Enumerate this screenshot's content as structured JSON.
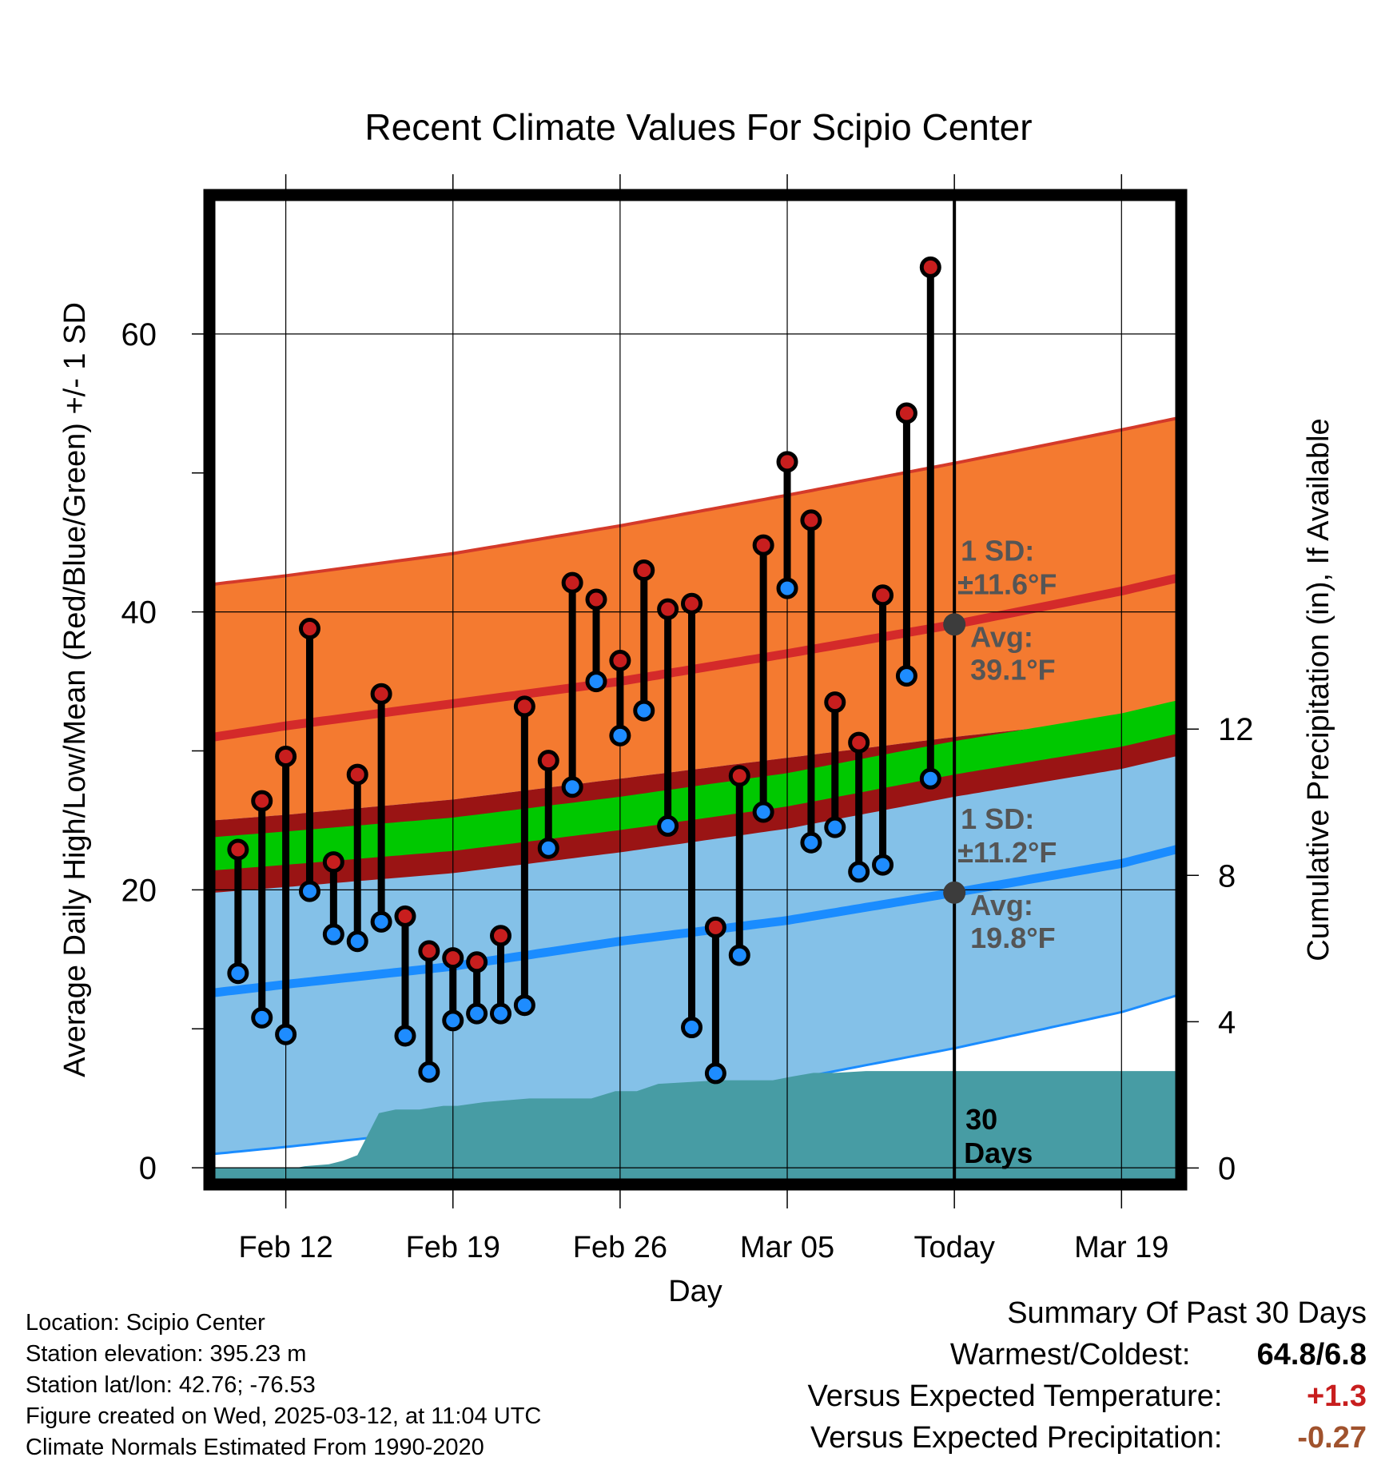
{
  "chart_data": {
    "type": "climate",
    "title": "Recent Climate Values For Scipio Center",
    "xlabel": "Day",
    "ylabel_left": "Average Daily High/Low/Mean (Red/Blue/Green) +/- 1 SD",
    "ylabel_right": "Cumulative Precipitation (in), If Available",
    "x_tick_labels": [
      "Feb 12",
      "Feb 19",
      "Feb 26",
      "Mar 05",
      "Today",
      "Mar 19"
    ],
    "x_tick_days": [
      0,
      7,
      14,
      21,
      28,
      35
    ],
    "x_range_days": [
      -3.2,
      37.5
    ],
    "today_day": 28,
    "ylim_left": [
      -1.2,
      70
    ],
    "yticks_left": [
      0,
      20,
      40,
      60
    ],
    "ylim_right": [
      -0.45,
      26.6
    ],
    "yticks_right": [
      0,
      4,
      8,
      12
    ],
    "normals": {
      "days": [
        -3,
        0,
        7,
        14,
        21,
        28,
        35,
        37.5
      ],
      "high_mean": [
        31.0,
        31.8,
        33.4,
        35.0,
        37.0,
        39.1,
        41.5,
        42.5
      ],
      "high_plus_sd": [
        42.0,
        42.6,
        44.2,
        46.2,
        48.4,
        50.7,
        53.1,
        54.0
      ],
      "high_minus_sd": [
        25.0,
        25.4,
        26.5,
        28.0,
        29.5,
        31.0,
        32.3,
        32.8
      ],
      "low_mean": [
        12.6,
        13.2,
        14.5,
        16.3,
        17.8,
        19.8,
        21.9,
        23.0
      ],
      "low_plus_sd": [
        25.0,
        25.4,
        26.5,
        28.0,
        29.5,
        31.0,
        32.3,
        32.8
      ],
      "low_minus_sd": [
        1.0,
        1.5,
        2.8,
        4.5,
        6.3,
        8.6,
        11.2,
        12.5
      ],
      "avg_mean": [
        22.6,
        23.0,
        24.0,
        25.5,
        27.2,
        29.5,
        31.5,
        32.5
      ],
      "avg_band_half_width": 1.2
    },
    "observed": {
      "days": [
        -2,
        -1,
        0,
        1,
        2,
        3,
        4,
        5,
        6,
        7,
        8,
        9,
        10,
        11,
        12,
        13,
        14,
        15,
        16,
        17,
        18,
        19,
        20,
        21,
        22,
        23,
        24,
        25,
        26,
        27
      ],
      "high": [
        22.9,
        26.4,
        29.6,
        38.8,
        22.0,
        28.3,
        34.1,
        18.1,
        15.6,
        15.1,
        14.8,
        16.7,
        33.2,
        29.3,
        42.1,
        40.9,
        36.5,
        43.0,
        40.2,
        40.6,
        17.3,
        28.2,
        44.8,
        50.8,
        46.6,
        33.5,
        30.6,
        41.2,
        54.3,
        64.8
      ],
      "low": [
        14.0,
        10.8,
        9.6,
        19.9,
        16.8,
        16.3,
        17.7,
        9.5,
        6.9,
        10.6,
        11.1,
        11.1,
        11.7,
        23.0,
        27.4,
        35.0,
        31.1,
        32.9,
        24.6,
        10.1,
        6.8,
        15.3,
        25.6,
        41.7,
        23.4,
        24.5,
        21.3,
        21.8,
        35.4,
        28.0
      ]
    },
    "precip_cumulative": {
      "days": [
        -3.2,
        0.4,
        0.8,
        1.8,
        2.4,
        3.0,
        3.9,
        4.6,
        5.6,
        6.6,
        7.2,
        8.3,
        10.2,
        12.8,
        13.8,
        14.7,
        15.6,
        18.2,
        19.6,
        20.4,
        21.2,
        22.1,
        23.0,
        24.3,
        37.5
      ],
      "values": [
        0,
        0,
        0.05,
        0.1,
        0.2,
        0.35,
        1.5,
        1.6,
        1.6,
        1.7,
        1.7,
        1.8,
        1.9,
        1.9,
        2.1,
        2.1,
        2.3,
        2.4,
        2.4,
        2.4,
        2.5,
        2.6,
        2.6,
        2.65,
        2.65
      ]
    },
    "annotations": {
      "high_sd_label": "1 SD:",
      "high_sd_value": "±11.6°F",
      "high_avg_label": "Avg:",
      "high_avg_value": "39.1°F",
      "high_today_value": 39.1,
      "low_sd_label": "1 SD:",
      "low_sd_value": "±11.2°F",
      "low_avg_label": "Avg:",
      "low_avg_value": "19.8°F",
      "low_today_value": 19.8,
      "window_label_line1": "30",
      "window_label_line2": "Days"
    },
    "colors": {
      "high_band": "#f47a30",
      "high_line": "#d42a2a",
      "high_band_edge": "#d43a2a",
      "low_band": "#84c1e8",
      "low_line": "#1a8cff",
      "overlap_band": "#9a1414",
      "avg_band": "#00c800",
      "precip_fill": "#479ca4",
      "high_marker": "#c81e1e",
      "low_marker": "#1e8cff",
      "today_marker": "#3c3c3c",
      "annotation_text": "#555555"
    }
  },
  "info": {
    "location": "Location: Scipio Center",
    "elevation": "Station elevation: 395.23 m",
    "latlon": "Station lat/lon: 42.76; -76.53",
    "created": "Figure created on Wed, 2025-03-12, at 11:04 UTC",
    "normals": "Climate Normals Estimated From 1990-2020"
  },
  "summary": {
    "title": "Summary Of Past 30 Days",
    "warmest_coldest_label": "Warmest/Coldest:",
    "warmest_coldest_value": "64.8/6.8",
    "temp_label": "Versus Expected Temperature:",
    "temp_value": "+1.3",
    "temp_color": "#c81e1e",
    "precip_label": "Versus Expected Precipitation:",
    "precip_value": "-0.27",
    "precip_color": "#a0522d"
  }
}
